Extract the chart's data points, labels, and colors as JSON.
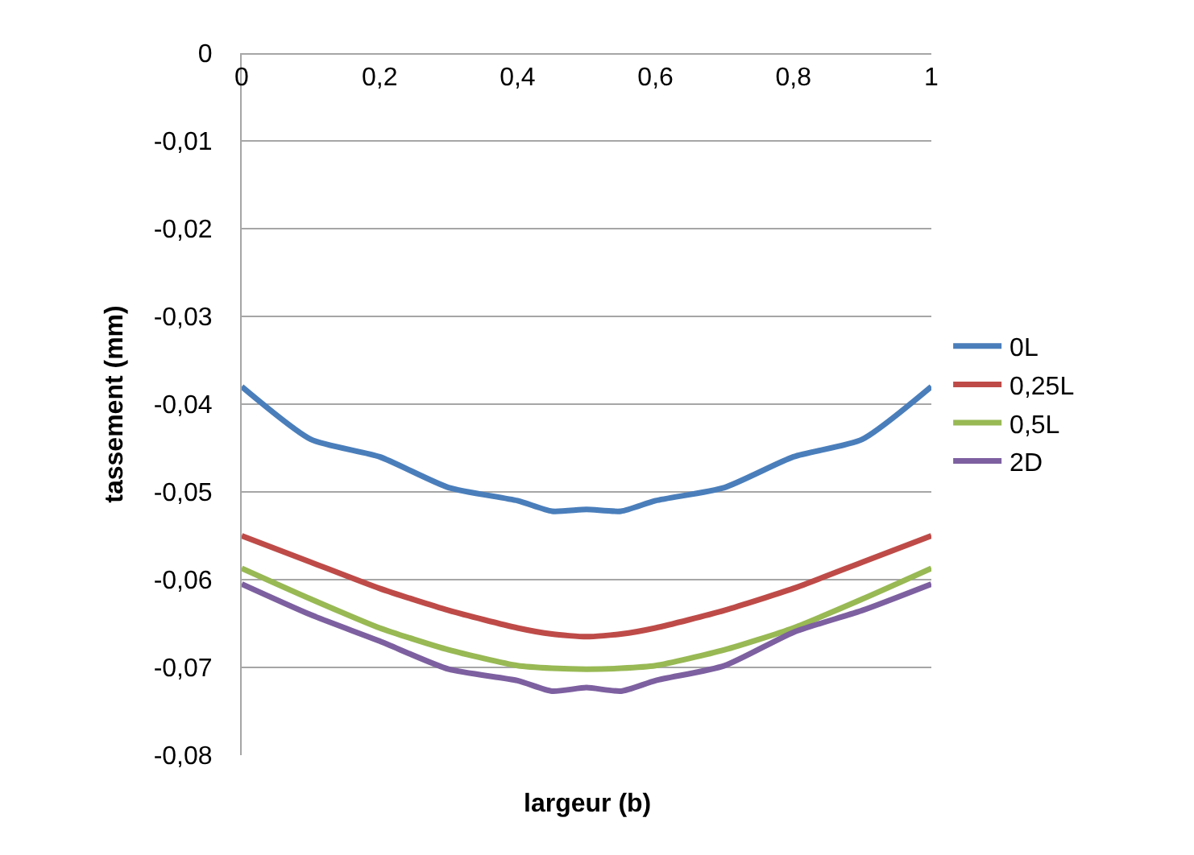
{
  "chart_data": {
    "type": "line",
    "xlabel": "largeur (b)",
    "ylabel": "tassement (mm)",
    "x": [
      0,
      0.1,
      0.2,
      0.3,
      0.4,
      0.45,
      0.5,
      0.55,
      0.6,
      0.7,
      0.8,
      0.9,
      1
    ],
    "series": [
      {
        "name": "0L",
        "color": "#4a7ebb",
        "values": [
          -0.038,
          -0.044,
          -0.046,
          -0.0495,
          -0.051,
          -0.0522,
          -0.052,
          -0.0522,
          -0.051,
          -0.0495,
          -0.046,
          -0.044,
          -0.038
        ]
      },
      {
        "name": "0,25L",
        "color": "#be4b48",
        "values": [
          -0.055,
          -0.058,
          -0.061,
          -0.0635,
          -0.0655,
          -0.0662,
          -0.0665,
          -0.0662,
          -0.0655,
          -0.0635,
          -0.061,
          -0.058,
          -0.055
        ]
      },
      {
        "name": "0,5L",
        "color": "#98b954",
        "values": [
          -0.0587,
          -0.0622,
          -0.0655,
          -0.068,
          -0.0698,
          -0.0701,
          -0.0702,
          -0.0701,
          -0.0698,
          -0.068,
          -0.0655,
          -0.0622,
          -0.0587
        ]
      },
      {
        "name": "2D",
        "color": "#7d60a0",
        "values": [
          -0.0605,
          -0.064,
          -0.067,
          -0.0702,
          -0.0715,
          -0.0727,
          -0.0723,
          -0.0727,
          -0.0715,
          -0.0698,
          -0.066,
          -0.0635,
          -0.0605
        ]
      }
    ],
    "xlim": [
      0,
      1
    ],
    "xticks": [
      0,
      {
        "value": 0.2,
        "label": "0,2"
      },
      {
        "value": 0.4,
        "label": "0,4"
      },
      {
        "value": 0.6,
        "label": "0,6"
      },
      {
        "value": 0.8,
        "label": "0,8"
      },
      1
    ],
    "ylim": [
      -0.08,
      0
    ],
    "yticks": [
      0,
      {
        "value": -0.01,
        "label": "-0,01"
      },
      {
        "value": -0.02,
        "label": "-0,02"
      },
      {
        "value": -0.03,
        "label": "-0,03"
      },
      {
        "value": -0.04,
        "label": "-0,04"
      },
      {
        "value": -0.05,
        "label": "-0,05"
      },
      {
        "value": -0.06,
        "label": "-0,06"
      },
      {
        "value": -0.07,
        "label": "-0,07"
      },
      {
        "value": -0.08,
        "label": "-0,08"
      }
    ],
    "grid": "y",
    "legend": "right",
    "marker": "none",
    "line_style": "solid"
  }
}
